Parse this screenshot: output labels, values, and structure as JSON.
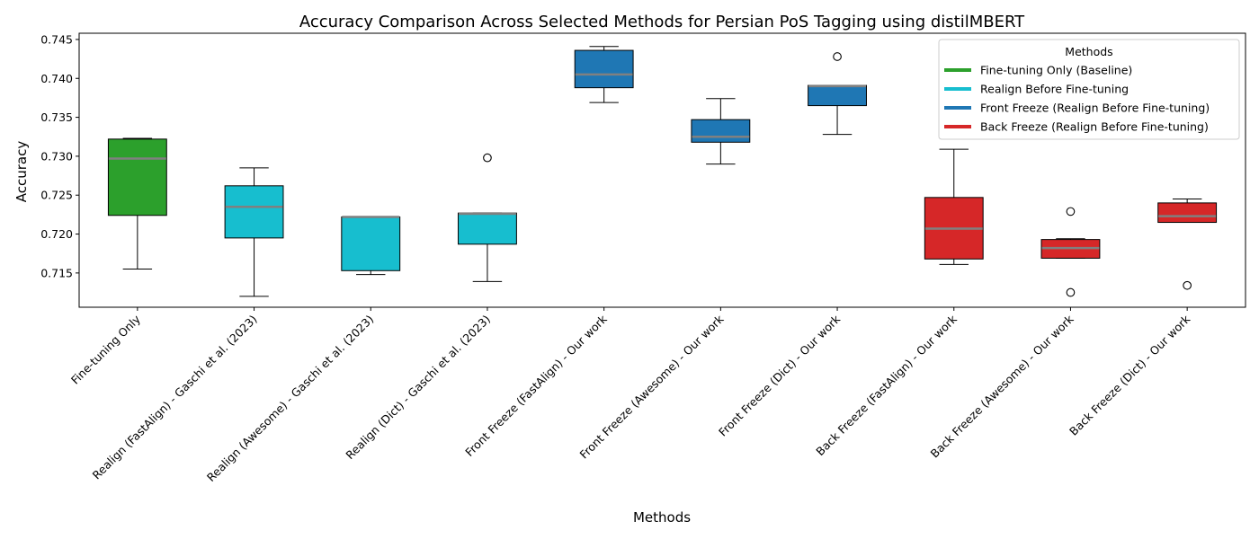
{
  "chart_data": {
    "type": "box",
    "title": "Accuracy Comparison Across Selected Methods for Persian PoS Tagging using distilMBERT",
    "xlabel": "Methods",
    "ylabel": "Accuracy",
    "ylim": [
      0.7106,
      0.7458
    ],
    "yticks": [
      0.715,
      0.72,
      0.725,
      0.73,
      0.735,
      0.74,
      0.745
    ],
    "ytick_labels": [
      "0.715",
      "0.720",
      "0.725",
      "0.730",
      "0.735",
      "0.740",
      "0.745"
    ],
    "grid": false,
    "median_color": "#808080",
    "categories": [
      "Fine-tuning Only",
      "Realign (FastAlign) - Gaschi et al. (2023)",
      "Realign (Awesome) - Gaschi et al. (2023)",
      "Realign (Dict) - Gaschi et al. (2023)",
      "Front Freeze (FastAlign) - Our work",
      "Front Freeze (Awesome) - Our work",
      "Front Freeze (Dict) - Our work",
      "Back Freeze (FastAlign) - Our work",
      "Back Freeze (Awesome) - Our work",
      "Back Freeze (Dict) - Our work"
    ],
    "boxes": [
      {
        "group": 0,
        "whisker_low": 0.7155,
        "q1": 0.7224,
        "median": 0.7297,
        "q3": 0.7322,
        "whisker_high": 0.7323,
        "outliers": []
      },
      {
        "group": 1,
        "whisker_low": 0.712,
        "q1": 0.7195,
        "median": 0.7235,
        "q3": 0.7262,
        "whisker_high": 0.7285,
        "outliers": []
      },
      {
        "group": 1,
        "whisker_low": 0.7148,
        "q1": 0.7153,
        "median": 0.7222,
        "q3": 0.7222,
        "whisker_high": 0.7222,
        "outliers": []
      },
      {
        "group": 1,
        "whisker_low": 0.7139,
        "q1": 0.7187,
        "median": 0.7226,
        "q3": 0.7227,
        "whisker_high": 0.7227,
        "outliers": [
          0.7298
        ]
      },
      {
        "group": 2,
        "whisker_low": 0.7369,
        "q1": 0.7388,
        "median": 0.7405,
        "q3": 0.7436,
        "whisker_high": 0.7441,
        "outliers": []
      },
      {
        "group": 2,
        "whisker_low": 0.729,
        "q1": 0.7318,
        "median": 0.7325,
        "q3": 0.7347,
        "whisker_high": 0.7374,
        "outliers": []
      },
      {
        "group": 2,
        "whisker_low": 0.7328,
        "q1": 0.7365,
        "median": 0.739,
        "q3": 0.7391,
        "whisker_high": 0.7391,
        "outliers": [
          0.7428
        ]
      },
      {
        "group": 3,
        "whisker_low": 0.7161,
        "q1": 0.7168,
        "median": 0.7207,
        "q3": 0.7247,
        "whisker_high": 0.7309,
        "outliers": []
      },
      {
        "group": 3,
        "whisker_low": 0.7169,
        "q1": 0.7169,
        "median": 0.7182,
        "q3": 0.7193,
        "whisker_high": 0.7194,
        "outliers": [
          0.7229,
          0.7125
        ]
      },
      {
        "group": 3,
        "whisker_low": 0.7215,
        "q1": 0.7215,
        "median": 0.7223,
        "q3": 0.724,
        "whisker_high": 0.7245,
        "outliers": [
          0.7134
        ]
      }
    ],
    "legend": {
      "title": "Methods",
      "placement": "top-right",
      "entries": [
        {
          "label": "Fine-tuning Only (Baseline)",
          "color": "#2ca02c"
        },
        {
          "label": "Realign Before Fine-tuning",
          "color": "#17becf"
        },
        {
          "label": "Front Freeze (Realign Before Fine-tuning)",
          "color": "#1f77b4"
        },
        {
          "label": "Back Freeze (Realign Before Fine-tuning)",
          "color": "#d62728"
        }
      ]
    }
  }
}
